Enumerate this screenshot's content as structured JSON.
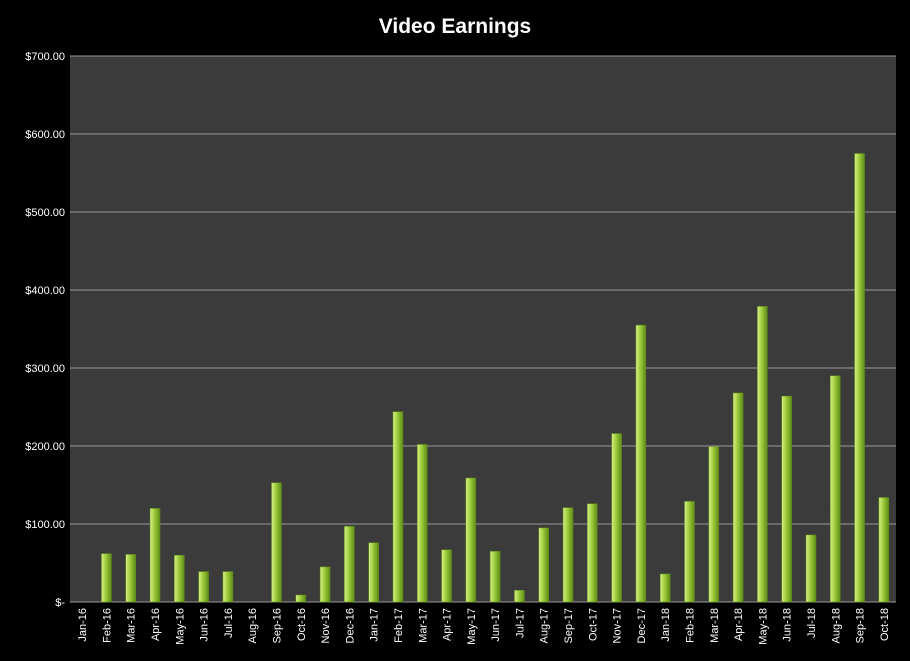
{
  "chart_data": {
    "type": "bar",
    "title": "Video Earnings",
    "xlabel": "",
    "ylabel": "",
    "ylim": [
      0,
      700
    ],
    "yticks": [
      {
        "value": 0,
        "label": "$-"
      },
      {
        "value": 100,
        "label": "$100.00"
      },
      {
        "value": 200,
        "label": "$200.00"
      },
      {
        "value": 300,
        "label": "$300.00"
      },
      {
        "value": 400,
        "label": "$400.00"
      },
      {
        "value": 500,
        "label": "$500.00"
      },
      {
        "value": 600,
        "label": "$600.00"
      },
      {
        "value": 700,
        "label": "$700.00"
      }
    ],
    "grid": true,
    "legend": "none",
    "categories": [
      "Jan-16",
      "Feb-16",
      "Mar-16",
      "Apr-16",
      "May-16",
      "Jun-16",
      "Jul-16",
      "Aug-16",
      "Sep-16",
      "Oct-16",
      "Nov-16",
      "Dec-16",
      "Jan-17",
      "Feb-17",
      "Mar-17",
      "Apr-17",
      "May-17",
      "Jun-17",
      "Jul-17",
      "Aug-17",
      "Sep-17",
      "Oct-17",
      "Nov-17",
      "Dec-17",
      "Jan-18",
      "Feb-18",
      "Mar-18",
      "Apr-18",
      "May-18",
      "Jun-18",
      "Jul-18",
      "Aug-18",
      "Sep-18",
      "Oct-18"
    ],
    "values": [
      0,
      62,
      61,
      120,
      60,
      39,
      39,
      0,
      153,
      9,
      45,
      97,
      76,
      244,
      202,
      67,
      159,
      65,
      15,
      95,
      121,
      126,
      216,
      355,
      36,
      129,
      199,
      268,
      379,
      264,
      86,
      290,
      575,
      134
    ],
    "colors": {
      "background": "#000000",
      "plot_area": "#3b3b3b",
      "grid": "#9a9a9a",
      "bar_light": "#d9ef8a",
      "bar_mid": "#9dcb3a",
      "bar_dark": "#5f8a18",
      "text": "#ffffff"
    }
  }
}
